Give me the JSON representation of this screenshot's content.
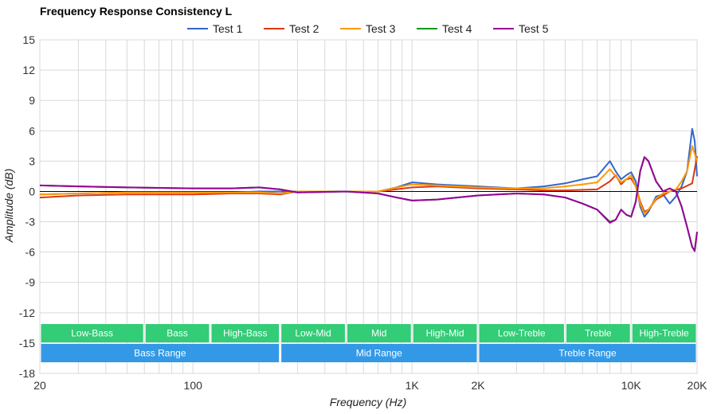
{
  "chart_data": {
    "type": "line",
    "title": "Frequency Response Consistency L",
    "xlabel": "Frequency (Hz)",
    "ylabel": "Amplitude (dB)",
    "x_scale": "log",
    "xlim": [
      20,
      20000
    ],
    "ylim": [
      -18,
      15
    ],
    "x_ticks": [
      {
        "value": 20,
        "label": "20"
      },
      {
        "value": 100,
        "label": "100"
      },
      {
        "value": 1000,
        "label": "1K"
      },
      {
        "value": 2000,
        "label": "2K"
      },
      {
        "value": 10000,
        "label": "10K"
      },
      {
        "value": 20000,
        "label": "20K"
      }
    ],
    "y_ticks": [
      15,
      12,
      9,
      6,
      3,
      0,
      -3,
      -6,
      -9,
      -12,
      -15,
      -18
    ],
    "grid": true,
    "legend_position": "top-center",
    "series": [
      {
        "name": "Test 1",
        "color": "#3366cc",
        "points": [
          [
            20,
            -0.3
          ],
          [
            30,
            -0.2
          ],
          [
            50,
            -0.1
          ],
          [
            100,
            -0.1
          ],
          [
            150,
            -0.1
          ],
          [
            200,
            0
          ],
          [
            300,
            0
          ],
          [
            500,
            0
          ],
          [
            700,
            0
          ],
          [
            850,
            0.4
          ],
          [
            1000,
            0.9
          ],
          [
            1300,
            0.7
          ],
          [
            2000,
            0.5
          ],
          [
            3000,
            0.3
          ],
          [
            4000,
            0.5
          ],
          [
            5000,
            0.8
          ],
          [
            6000,
            1.2
          ],
          [
            7000,
            1.5
          ],
          [
            8000,
            3.0
          ],
          [
            8500,
            2.0
          ],
          [
            9000,
            1.2
          ],
          [
            9500,
            1.6
          ],
          [
            10000,
            1.9
          ],
          [
            10500,
            1.0
          ],
          [
            11000,
            -1.5
          ],
          [
            11500,
            -2.5
          ],
          [
            12000,
            -2.0
          ],
          [
            13000,
            -0.5
          ],
          [
            14000,
            -0.3
          ],
          [
            15000,
            -1.2
          ],
          [
            16000,
            -0.5
          ],
          [
            17000,
            0.5
          ],
          [
            18000,
            2.0
          ],
          [
            19000,
            6.2
          ],
          [
            19500,
            5.0
          ],
          [
            20000,
            1.5
          ]
        ]
      },
      {
        "name": "Test 2",
        "color": "#dc3912",
        "points": [
          [
            20,
            -0.6
          ],
          [
            30,
            -0.4
          ],
          [
            50,
            -0.3
          ],
          [
            100,
            -0.3
          ],
          [
            150,
            -0.2
          ],
          [
            200,
            -0.2
          ],
          [
            250,
            -0.3
          ],
          [
            300,
            0
          ],
          [
            500,
            0
          ],
          [
            700,
            0
          ],
          [
            1000,
            0.4
          ],
          [
            1300,
            0.5
          ],
          [
            2000,
            0.3
          ],
          [
            3000,
            0.2
          ],
          [
            4000,
            0.1
          ],
          [
            5000,
            0.1
          ],
          [
            7000,
            0.2
          ],
          [
            8000,
            1.0
          ],
          [
            8500,
            1.6
          ],
          [
            9000,
            0.7
          ],
          [
            9500,
            1.2
          ],
          [
            10000,
            1.3
          ],
          [
            10500,
            0.5
          ],
          [
            11000,
            -1.0
          ],
          [
            11500,
            -2.0
          ],
          [
            12000,
            -1.8
          ],
          [
            13000,
            -0.8
          ],
          [
            14000,
            -0.4
          ],
          [
            15000,
            0
          ],
          [
            17000,
            0.3
          ],
          [
            19000,
            0.8
          ],
          [
            20000,
            3.5
          ]
        ]
      },
      {
        "name": "Test 3",
        "color": "#ff9900",
        "points": [
          [
            20,
            -0.3
          ],
          [
            30,
            -0.2
          ],
          [
            50,
            -0.1
          ],
          [
            100,
            -0.1
          ],
          [
            150,
            -0.1
          ],
          [
            200,
            -0.1
          ],
          [
            250,
            -0.2
          ],
          [
            300,
            0
          ],
          [
            500,
            0
          ],
          [
            700,
            0
          ],
          [
            1000,
            0.7
          ],
          [
            1300,
            0.6
          ],
          [
            2000,
            0.4
          ],
          [
            3000,
            0.3
          ],
          [
            4000,
            0.3
          ],
          [
            5000,
            0.5
          ],
          [
            6000,
            0.7
          ],
          [
            7000,
            0.9
          ],
          [
            8000,
            2.2
          ],
          [
            8500,
            1.5
          ],
          [
            9000,
            0.9
          ],
          [
            9500,
            1.2
          ],
          [
            10000,
            1.6
          ],
          [
            10500,
            0.5
          ],
          [
            11000,
            -1.2
          ],
          [
            11500,
            -2.2
          ],
          [
            12000,
            -1.8
          ],
          [
            13000,
            -0.7
          ],
          [
            14000,
            -0.2
          ],
          [
            15000,
            0
          ],
          [
            16000,
            0.2
          ],
          [
            17000,
            1.0
          ],
          [
            18000,
            2.0
          ],
          [
            19000,
            4.5
          ],
          [
            20000,
            3.0
          ]
        ]
      },
      {
        "name": "Test 4",
        "color": "#109618",
        "points": [
          [
            20,
            0.6
          ],
          [
            30,
            0.5
          ],
          [
            50,
            0.4
          ],
          [
            100,
            0.3
          ],
          [
            150,
            0.3
          ],
          [
            200,
            0.4
          ],
          [
            250,
            0.2
          ],
          [
            300,
            -0.1
          ],
          [
            500,
            0
          ],
          [
            700,
            -0.2
          ],
          [
            850,
            -0.6
          ],
          [
            1000,
            -0.9
          ],
          [
            1300,
            -0.8
          ],
          [
            2000,
            -0.4
          ],
          [
            3000,
            -0.2
          ],
          [
            4000,
            -0.3
          ],
          [
            5000,
            -0.6
          ],
          [
            6000,
            -1.2
          ],
          [
            7000,
            -1.8
          ],
          [
            8000,
            -3.0
          ],
          [
            8500,
            -2.8
          ],
          [
            9000,
            -1.8
          ],
          [
            9500,
            -2.3
          ],
          [
            10000,
            -2.5
          ],
          [
            10500,
            -1.0
          ],
          [
            11000,
            2.0
          ],
          [
            11500,
            3.4
          ],
          [
            12000,
            3.0
          ],
          [
            13000,
            1.0
          ],
          [
            14000,
            0
          ],
          [
            15000,
            0.3
          ],
          [
            16000,
            0
          ],
          [
            17000,
            -1.5
          ],
          [
            18000,
            -3.5
          ],
          [
            19000,
            -5.5
          ],
          [
            19500,
            -5.8
          ],
          [
            20000,
            -4.0
          ]
        ]
      },
      {
        "name": "Test 5",
        "color": "#990099",
        "points": [
          [
            20,
            0.6
          ],
          [
            30,
            0.5
          ],
          [
            50,
            0.4
          ],
          [
            100,
            0.3
          ],
          [
            150,
            0.3
          ],
          [
            200,
            0.4
          ],
          [
            250,
            0.2
          ],
          [
            300,
            -0.1
          ],
          [
            500,
            0
          ],
          [
            700,
            -0.2
          ],
          [
            850,
            -0.6
          ],
          [
            1000,
            -0.9
          ],
          [
            1300,
            -0.8
          ],
          [
            2000,
            -0.4
          ],
          [
            3000,
            -0.2
          ],
          [
            4000,
            -0.3
          ],
          [
            5000,
            -0.6
          ],
          [
            6000,
            -1.2
          ],
          [
            7000,
            -1.8
          ],
          [
            8000,
            -3.1
          ],
          [
            8500,
            -2.8
          ],
          [
            9000,
            -1.8
          ],
          [
            9500,
            -2.3
          ],
          [
            10000,
            -2.5
          ],
          [
            10500,
            -1.0
          ],
          [
            11000,
            2.0
          ],
          [
            11500,
            3.4
          ],
          [
            12000,
            3.0
          ],
          [
            13000,
            1.0
          ],
          [
            14000,
            0
          ],
          [
            15000,
            0.3
          ],
          [
            16000,
            0
          ],
          [
            17000,
            -1.5
          ],
          [
            18000,
            -3.5
          ],
          [
            19000,
            -5.5
          ],
          [
            19500,
            -5.9
          ],
          [
            20000,
            -4.0
          ]
        ]
      }
    ],
    "bands_row1": [
      {
        "label": "Low-Bass",
        "from": 20,
        "to": 60,
        "color": "#33cc77"
      },
      {
        "label": "Bass",
        "from": 60,
        "to": 120,
        "color": "#33cc77"
      },
      {
        "label": "High-Bass",
        "from": 120,
        "to": 250,
        "color": "#33cc77"
      },
      {
        "label": "Low-Mid",
        "from": 250,
        "to": 500,
        "color": "#33cc77"
      },
      {
        "label": "Mid",
        "from": 500,
        "to": 1000,
        "color": "#33cc77"
      },
      {
        "label": "High-Mid",
        "from": 1000,
        "to": 2000,
        "color": "#33cc77"
      },
      {
        "label": "Low-Treble",
        "from": 2000,
        "to": 5000,
        "color": "#33cc77"
      },
      {
        "label": "Treble",
        "from": 5000,
        "to": 10000,
        "color": "#33cc77"
      },
      {
        "label": "High-Treble",
        "from": 10000,
        "to": 20000,
        "color": "#33cc77"
      }
    ],
    "bands_row2": [
      {
        "label": "Bass Range",
        "from": 20,
        "to": 250,
        "color": "#3399e6"
      },
      {
        "label": "Mid Range",
        "from": 250,
        "to": 2000,
        "color": "#3399e6"
      },
      {
        "label": "Treble Range",
        "from": 2000,
        "to": 20000,
        "color": "#3399e6"
      }
    ]
  }
}
